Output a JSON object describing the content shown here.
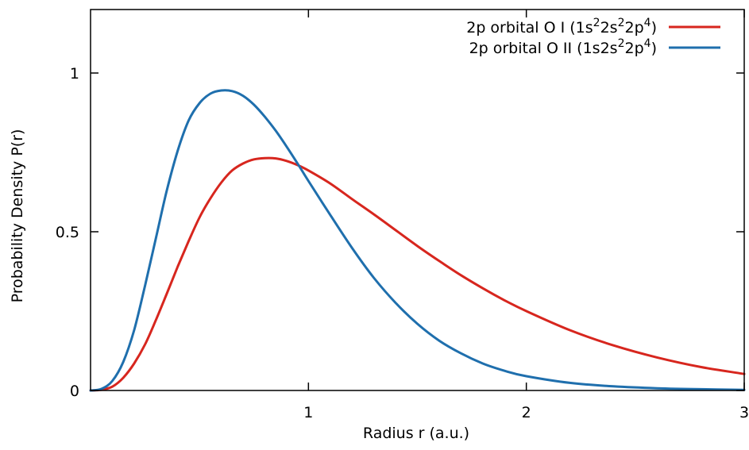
{
  "chart_data": {
    "type": "line",
    "title": "",
    "xlabel": "Radius r (a.u.)",
    "ylabel": "Probability Density P(r)",
    "xlim": [
      0,
      3
    ],
    "ylim": [
      0,
      1.2
    ],
    "xticks": [
      1,
      2,
      3
    ],
    "yticks": [
      0,
      0.5,
      1
    ],
    "xtick_labels": [
      "1",
      "2",
      "3"
    ],
    "ytick_labels": [
      "0",
      "0.5",
      "1"
    ],
    "grid": false,
    "legend_position": "top-right",
    "series": [
      {
        "name": "2p orbital O I (1s²2s²2p⁴)",
        "legend": {
          "base": "2p orbital O I (1s",
          "sup1": "2",
          "mid1": "2s",
          "sup2": "2",
          "mid2": "2p",
          "sup3": "4",
          "end": ")"
        },
        "color": "#d7261e",
        "x": [
          0,
          0.05,
          0.1,
          0.15,
          0.2,
          0.25,
          0.3,
          0.35,
          0.4,
          0.45,
          0.5,
          0.55,
          0.6,
          0.65,
          0.7,
          0.75,
          0.8,
          0.85,
          0.9,
          0.95,
          1.0,
          1.1,
          1.2,
          1.3,
          1.4,
          1.5,
          1.6,
          1.7,
          1.8,
          1.9,
          2.0,
          2.2,
          2.4,
          2.6,
          2.8,
          3.0
        ],
        "y": [
          0.0,
          0.002,
          0.012,
          0.04,
          0.085,
          0.145,
          0.222,
          0.305,
          0.39,
          0.47,
          0.545,
          0.605,
          0.655,
          0.693,
          0.715,
          0.728,
          0.732,
          0.731,
          0.723,
          0.71,
          0.693,
          0.652,
          0.603,
          0.555,
          0.505,
          0.455,
          0.408,
          0.363,
          0.322,
          0.284,
          0.25,
          0.19,
          0.142,
          0.104,
          0.074,
          0.052
        ]
      },
      {
        "name": "2p orbital O II  (1s2s²2p⁴)",
        "legend": {
          "base": "2p orbital O II  (1s2s",
          "sup1": "2",
          "mid1": "2p",
          "sup2": "4",
          "end": ")"
        },
        "color": "#1f6fad",
        "x": [
          0,
          0.05,
          0.1,
          0.15,
          0.2,
          0.25,
          0.3,
          0.35,
          0.4,
          0.45,
          0.5,
          0.55,
          0.6,
          0.65,
          0.7,
          0.75,
          0.8,
          0.85,
          0.9,
          0.95,
          1.0,
          1.1,
          1.2,
          1.3,
          1.4,
          1.5,
          1.6,
          1.7,
          1.8,
          1.9,
          2.0,
          2.2,
          2.4,
          2.6,
          2.8,
          3.0
        ],
        "y": [
          0.0,
          0.005,
          0.03,
          0.09,
          0.19,
          0.33,
          0.48,
          0.63,
          0.755,
          0.85,
          0.905,
          0.935,
          0.945,
          0.943,
          0.928,
          0.9,
          0.862,
          0.818,
          0.768,
          0.715,
          0.66,
          0.553,
          0.449,
          0.355,
          0.276,
          0.21,
          0.157,
          0.117,
          0.085,
          0.062,
          0.045,
          0.024,
          0.013,
          0.007,
          0.004,
          0.002
        ]
      }
    ]
  }
}
